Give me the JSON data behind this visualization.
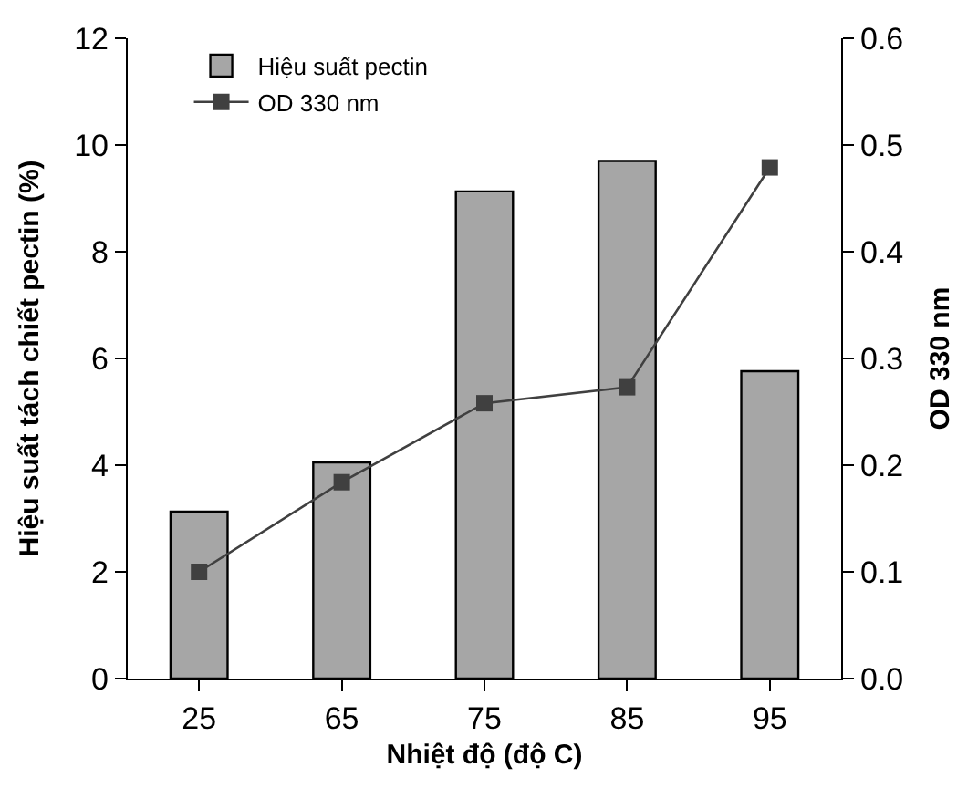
{
  "chart_data": {
    "type": "bar",
    "xlabel": "Nhiệt độ (độ C)",
    "ylabel": "Hiệu suất tách chiết pectin (%)",
    "y2label": "OD 330 nm",
    "categories": [
      "25",
      "65",
      "75",
      "85",
      "95"
    ],
    "series": [
      {
        "name": "Hiệu suất pectin",
        "color": "#a6a6a6",
        "values": [
          3.13,
          4.05,
          9.13,
          9.7,
          5.76
        ]
      },
      {
        "name": "OD 330 nm",
        "type": "line",
        "axis": "y2",
        "color": "#404040",
        "marker": "square",
        "values": [
          0.1,
          0.184,
          0.258,
          0.273,
          0.479
        ]
      }
    ],
    "ylim": [
      0,
      12
    ],
    "yticks": [
      0,
      2,
      4,
      6,
      8,
      10,
      12
    ],
    "y2lim": [
      0,
      0.6
    ],
    "y2ticks": [
      {
        "value": 0,
        "label": "0.0"
      },
      0.1,
      0.2,
      0.3,
      0.4,
      0.5,
      0.6
    ],
    "legend": "top left"
  }
}
